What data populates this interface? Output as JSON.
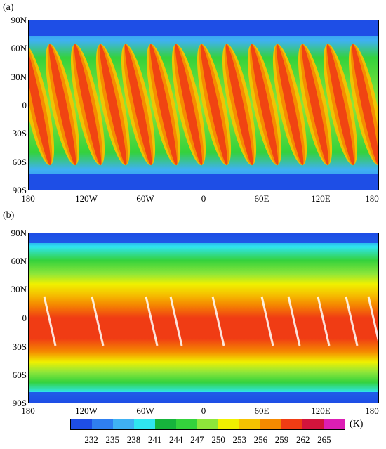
{
  "panels": [
    {
      "label": "(a)",
      "y_labels": [
        "90N",
        "60N",
        "30N",
        "0",
        "30S",
        "60S",
        "90S"
      ],
      "x_labels": [
        "180",
        "120W",
        "60W",
        "0",
        "60E",
        "120E",
        "180"
      ]
    },
    {
      "label": "(b)",
      "y_labels": [
        "90N",
        "60N",
        "30N",
        "0",
        "30S",
        "60S",
        "90S"
      ],
      "x_labels": [
        "180",
        "120W",
        "60W",
        "0",
        "60E",
        "120E",
        "180"
      ]
    }
  ],
  "colorbar": {
    "colors": [
      "#1e4ee6",
      "#2f7ff0",
      "#3fb1f3",
      "#2fe6f0",
      "#16b43c",
      "#34d23c",
      "#8ee63a",
      "#f0f000",
      "#f5c200",
      "#f58a00",
      "#f03c14",
      "#d2143c",
      "#dc1eb4"
    ],
    "tick_labels": [
      "232",
      "235",
      "238",
      "241",
      "244",
      "247",
      "250",
      "253",
      "256",
      "259",
      "262",
      "265"
    ],
    "unit": "(K)"
  }
}
